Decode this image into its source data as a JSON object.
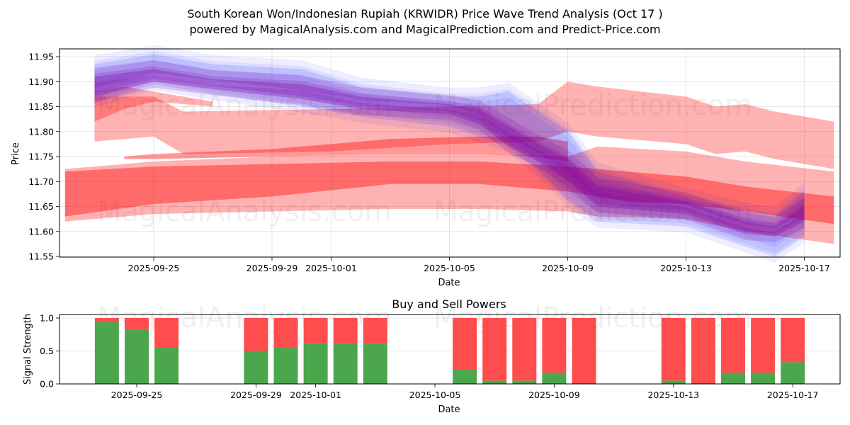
{
  "header": {
    "title_line1": "South Korean Won/Indonesian Rupiah (KRWIDR) Price Wave Trend Analysis (Oct 17 )",
    "title_line2": "powered by MagicalAnalysis.com and MagicalPrediction.com and Predict-Price.com"
  },
  "watermarks": [
    "MagicalAnalysis.com",
    "MagicalPrediction.com"
  ],
  "colors": {
    "red_band": "#ff0000",
    "blue_band": "#0000ff",
    "purple_band": "#8000a0",
    "buy": "#4ca64c",
    "sell": "#ff4c4c"
  },
  "chart_data": [
    {
      "type": "area",
      "title": "",
      "xlabel": "Date",
      "ylabel": "Price",
      "ylim": [
        11.55,
        11.965
      ],
      "xlim_dates": [
        "2025-09-22",
        "2025-10-18"
      ],
      "grid": true,
      "x_ticks": [
        "2025-09-25",
        "2025-09-29",
        "2025-10-01",
        "2025-10-05",
        "2025-10-09",
        "2025-10-13",
        "2025-10-17"
      ],
      "y_ticks": [
        "11.55",
        "11.60",
        "11.65",
        "11.70",
        "11.75",
        "11.80",
        "11.85",
        "11.90",
        "11.95"
      ],
      "series": [
        {
          "name": "red-upper-wide-band",
          "color": "red",
          "opacity": 0.3,
          "x": [
            "2025-09-23",
            "2025-09-25",
            "2025-09-26",
            "2025-10-01",
            "2025-10-05",
            "2025-10-08",
            "2025-10-09",
            "2025-10-10",
            "2025-10-13",
            "2025-10-14",
            "2025-10-15",
            "2025-10-16",
            "2025-10-18"
          ],
          "upper": [
            11.87,
            11.87,
            11.84,
            11.845,
            11.85,
            11.855,
            11.9,
            11.89,
            11.87,
            11.85,
            11.855,
            11.84,
            11.82
          ],
          "lower": [
            11.78,
            11.79,
            11.755,
            11.76,
            11.775,
            11.78,
            11.8,
            11.79,
            11.775,
            11.755,
            11.76,
            11.745,
            11.725
          ]
        },
        {
          "name": "red-upper-narrow-band",
          "color": "red",
          "opacity": 0.3,
          "x": [
            "2025-09-23",
            "2025-09-24",
            "2025-09-25",
            "2025-09-27"
          ],
          "upper": [
            11.88,
            11.89,
            11.88,
            11.86
          ],
          "lower": [
            11.82,
            11.845,
            11.86,
            11.85
          ]
        },
        {
          "name": "red-middle-band",
          "color": "red",
          "opacity": 0.3,
          "x": [
            "2025-09-22",
            "2025-09-25",
            "2025-09-29",
            "2025-10-03",
            "2025-10-06",
            "2025-10-09",
            "2025-10-10",
            "2025-10-13",
            "2025-10-15",
            "2025-10-18"
          ],
          "upper": [
            11.725,
            11.74,
            11.75,
            11.755,
            11.755,
            11.75,
            11.77,
            11.76,
            11.74,
            11.72
          ],
          "lower": [
            11.62,
            11.635,
            11.64,
            11.645,
            11.645,
            11.64,
            11.63,
            11.625,
            11.6,
            11.575
          ]
        },
        {
          "name": "red-core-band",
          "color": "red",
          "opacity": 0.4,
          "x": [
            "2025-09-22",
            "2025-09-25",
            "2025-09-29",
            "2025-10-03",
            "2025-10-06",
            "2025-10-09",
            "2025-10-11",
            "2025-10-13",
            "2025-10-15",
            "2025-10-18"
          ],
          "upper": [
            11.72,
            11.73,
            11.735,
            11.74,
            11.74,
            11.73,
            11.72,
            11.71,
            11.69,
            11.67
          ],
          "lower": [
            11.63,
            11.655,
            11.67,
            11.695,
            11.695,
            11.68,
            11.66,
            11.655,
            11.64,
            11.615
          ]
        },
        {
          "name": "red-rising-band",
          "color": "red",
          "opacity": 0.4,
          "x": [
            "2025-09-24",
            "2025-09-25",
            "2025-09-29",
            "2025-10-03",
            "2025-10-06",
            "2025-10-08",
            "2025-10-09"
          ],
          "upper": [
            11.75,
            11.755,
            11.765,
            11.785,
            11.79,
            11.79,
            11.78
          ],
          "lower": [
            11.745,
            11.745,
            11.75,
            11.755,
            11.755,
            11.75,
            11.74
          ]
        },
        {
          "name": "blue-price-wave",
          "color": "blue",
          "opacity": 0.12,
          "x": [
            "2025-09-23",
            "2025-09-25",
            "2025-09-27",
            "2025-09-30",
            "2025-10-02",
            "2025-10-05",
            "2025-10-06",
            "2025-10-07",
            "2025-10-08",
            "2025-10-09",
            "2025-10-10",
            "2025-10-13",
            "2025-10-15",
            "2025-10-16",
            "2025-10-17"
          ],
          "upper": [
            11.935,
            11.955,
            11.935,
            11.925,
            11.89,
            11.87,
            11.87,
            11.88,
            11.84,
            11.8,
            11.72,
            11.67,
            11.64,
            11.63,
            11.68
          ],
          "lower": [
            11.86,
            11.895,
            11.875,
            11.85,
            11.83,
            11.81,
            11.79,
            11.77,
            11.72,
            11.66,
            11.62,
            11.61,
            11.57,
            11.55,
            11.59
          ]
        },
        {
          "name": "purple-price-wave",
          "color": "purple",
          "opacity": 0.3,
          "x": [
            "2025-09-23",
            "2025-09-25",
            "2025-09-27",
            "2025-09-30",
            "2025-10-02",
            "2025-10-05",
            "2025-10-06",
            "2025-10-07",
            "2025-10-08",
            "2025-10-09",
            "2025-10-10",
            "2025-10-13",
            "2025-10-15",
            "2025-10-16",
            "2025-10-17"
          ],
          "upper": [
            11.91,
            11.925,
            11.905,
            11.895,
            11.87,
            11.855,
            11.845,
            11.81,
            11.775,
            11.745,
            11.69,
            11.66,
            11.62,
            11.61,
            11.65
          ],
          "lower": [
            11.87,
            11.9,
            11.885,
            11.865,
            11.845,
            11.835,
            11.815,
            11.77,
            11.74,
            11.7,
            11.65,
            11.635,
            11.595,
            11.59,
            11.62
          ]
        }
      ]
    },
    {
      "type": "bar",
      "title": "Buy and Sell Powers",
      "xlabel": "Date",
      "ylabel": "Signal Strength",
      "ylim": [
        0,
        1.05
      ],
      "grid": true,
      "x_ticks": [
        "2025-09-25",
        "2025-09-29",
        "2025-10-01",
        "2025-10-05",
        "2025-10-09",
        "2025-10-13",
        "2025-10-17"
      ],
      "y_ticks": [
        "0.0",
        "0.5",
        "1.0"
      ],
      "categories": [
        "2025-09-24",
        "2025-09-25",
        "2025-09-26",
        "2025-09-29",
        "2025-09-30",
        "2025-10-01",
        "2025-10-02",
        "2025-10-03",
        "2025-10-06",
        "2025-10-07",
        "2025-10-08",
        "2025-10-09",
        "2025-10-10",
        "2025-10-13",
        "2025-10-14",
        "2025-10-15",
        "2025-10-16",
        "2025-10-17"
      ],
      "series": [
        {
          "name": "Buy",
          "color": "green",
          "values": [
            0.94,
            0.83,
            0.56,
            0.5,
            0.56,
            0.61,
            0.61,
            0.61,
            0.22,
            0.05,
            0.05,
            0.17,
            0.0,
            0.05,
            0.0,
            0.17,
            0.17,
            0.33
          ]
        },
        {
          "name": "Sell",
          "color": "red",
          "values": [
            0.06,
            0.17,
            0.44,
            0.5,
            0.44,
            0.39,
            0.39,
            0.39,
            0.78,
            0.95,
            0.95,
            0.83,
            1.0,
            0.95,
            1.0,
            0.83,
            0.83,
            0.67
          ]
        }
      ]
    }
  ]
}
